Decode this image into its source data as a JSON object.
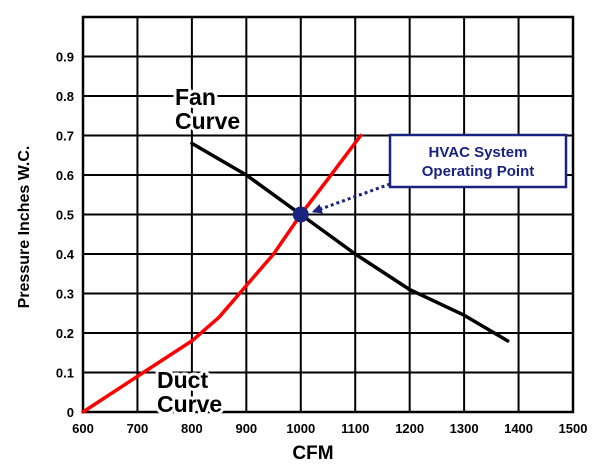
{
  "chart_data": {
    "type": "line",
    "xlabel": "CFM",
    "ylabel": "Pressure Inches W.C.",
    "xlim": [
      600,
      1500
    ],
    "ylim": [
      0,
      1.0
    ],
    "x_ticks": [
      "600",
      "700",
      "800",
      "900",
      "1000",
      "1100",
      "1200",
      "1300",
      "1400",
      "1500"
    ],
    "y_ticks": [
      "0",
      "0.1",
      "0.2",
      "0.3",
      "0.4",
      "0.5",
      "0.6",
      "0.7",
      "0.8",
      "0.9"
    ],
    "grid": true,
    "series": [
      {
        "name": "Fan Curve",
        "label_lines": [
          "Fan",
          "Curve"
        ],
        "color": "#000000",
        "points": [
          [
            800,
            0.68
          ],
          [
            900,
            0.6
          ],
          [
            1000,
            0.5
          ],
          [
            1100,
            0.4
          ],
          [
            1200,
            0.31
          ],
          [
            1300,
            0.245
          ],
          [
            1380,
            0.18
          ]
        ]
      },
      {
        "name": "Duct Curve",
        "label_lines": [
          "Duct",
          "Curve"
        ],
        "color": "#ff0000",
        "points": [
          [
            600,
            0
          ],
          [
            700,
            0.09
          ],
          [
            800,
            0.18
          ],
          [
            850,
            0.24
          ],
          [
            900,
            0.32
          ],
          [
            950,
            0.4
          ],
          [
            1000,
            0.5
          ],
          [
            1050,
            0.59
          ],
          [
            1110,
            0.7
          ]
        ]
      }
    ],
    "annotations": [
      {
        "name": "operating-point",
        "lines": [
          "HVAC System",
          "Operating Point"
        ],
        "x": 1000,
        "y": 0.5,
        "marker_color": "#1a237e",
        "box_border_color": "#1a237e",
        "text_color": "#1a237e"
      }
    ]
  }
}
